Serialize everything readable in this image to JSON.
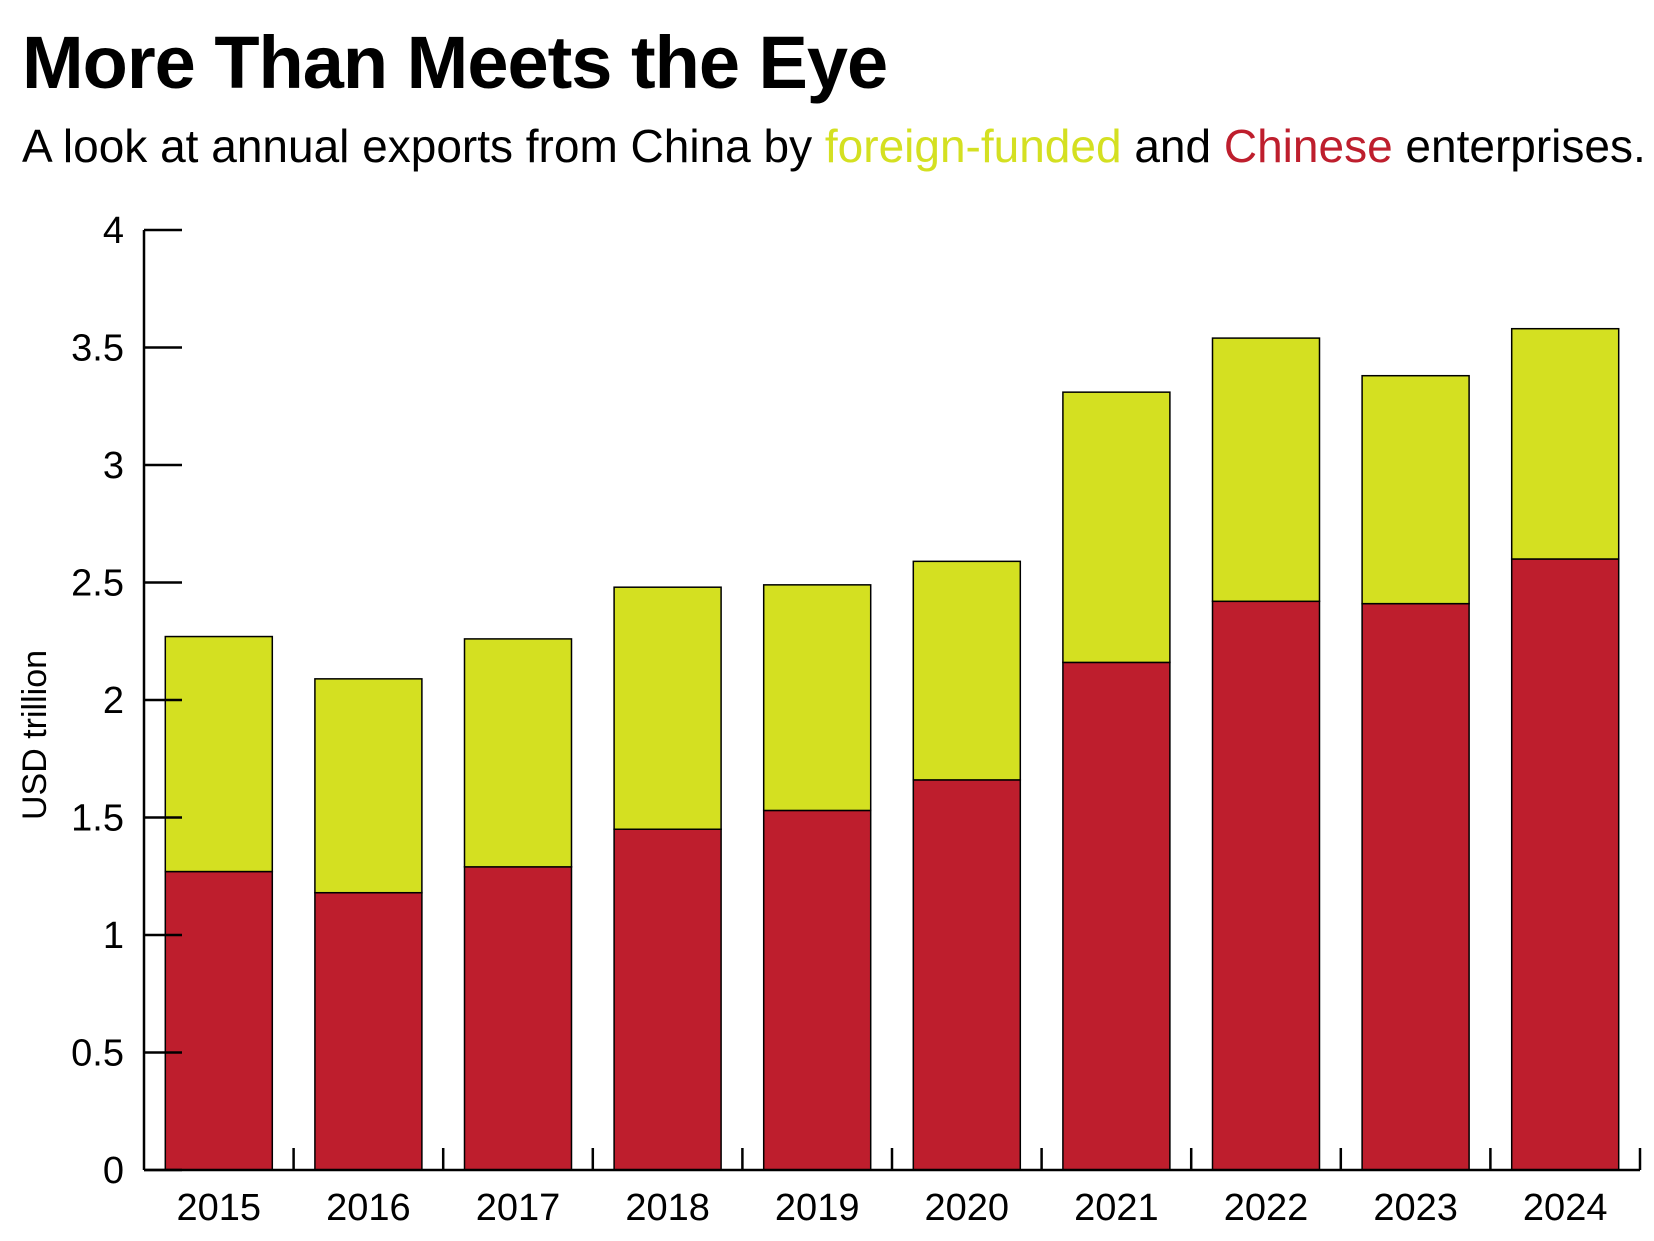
{
  "chart_data": {
    "type": "bar",
    "stacked": true,
    "title": "More Than Meets the Eye",
    "subtitle": {
      "before": "A look at annual exports from China by ",
      "foreign_word": "foreign-funded",
      "between": " and ",
      "chinese_word": "Chinese",
      "after": " enterprises."
    },
    "ylabel": "USD trillion",
    "xlabel": "",
    "ylim": [
      0,
      4
    ],
    "yticks": [
      "0",
      "0.5",
      "1",
      "1.5",
      "2",
      "2.5",
      "3",
      "3.5",
      "4"
    ],
    "categories": [
      "2015",
      "2016",
      "2017",
      "2018",
      "2019",
      "2020",
      "2021",
      "2022",
      "2023",
      "2024"
    ],
    "series": [
      {
        "key": "chinese",
        "color": "#be1e2d",
        "values": [
          1.27,
          1.18,
          1.29,
          1.45,
          1.53,
          1.66,
          2.16,
          2.42,
          2.41,
          2.6
        ]
      },
      {
        "key": "foreign",
        "color": "#d4e021",
        "values": [
          1.0,
          0.91,
          0.97,
          1.03,
          0.96,
          0.93,
          1.15,
          1.12,
          0.97,
          0.98
        ]
      }
    ],
    "totals": [
      2.27,
      2.09,
      2.26,
      2.48,
      2.49,
      2.59,
      3.31,
      3.54,
      3.38,
      3.58
    ],
    "grid": false,
    "legend": "none (colored words in subtitle)"
  }
}
